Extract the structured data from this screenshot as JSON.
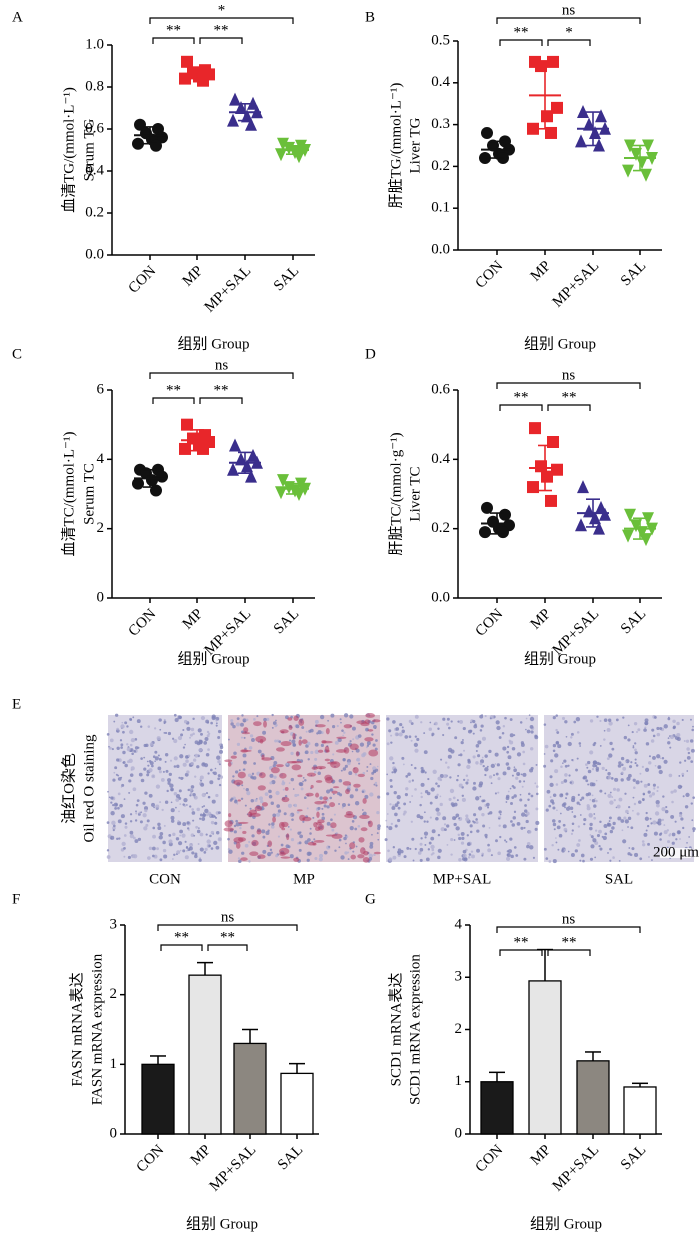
{
  "chart_data": [
    {
      "type": "dotplot",
      "panel": "A",
      "ylabel": [
        "血清TG/(mmol·L⁻¹)",
        "Serum TG"
      ],
      "xlabel": "组别 Group",
      "categories": [
        "CON",
        "MP",
        "MP+SAL",
        "SAL"
      ],
      "colors": [
        "#111111",
        "#e8262a",
        "#3a2e8c",
        "#6abf3a"
      ],
      "markers": [
        "circle",
        "square",
        "triangle-up",
        "triangle-down"
      ],
      "points": [
        [
          0.62,
          0.6,
          0.58,
          0.56,
          0.55,
          0.53,
          0.52
        ],
        [
          0.92,
          0.88,
          0.87,
          0.86,
          0.85,
          0.84,
          0.83
        ],
        [
          0.74,
          0.72,
          0.7,
          0.68,
          0.66,
          0.64,
          0.62
        ],
        [
          0.53,
          0.52,
          0.51,
          0.5,
          0.49,
          0.48,
          0.47
        ]
      ],
      "means": [
        0.57,
        0.86,
        0.68,
        0.5
      ],
      "sd": [
        0.04,
        0.02,
        0.04,
        0.02
      ],
      "ylim": [
        0,
        1.0
      ],
      "yticks": [
        {
          "value": 0,
          "label": "0.0"
        },
        0.2,
        0.4,
        0.6,
        0.8,
        {
          "value": 1.0,
          "label": "1.0"
        }
      ],
      "comparisons": [
        {
          "groups": [
            "CON",
            "MP"
          ],
          "label": "**"
        },
        {
          "groups": [
            "MP",
            "MP+SAL"
          ],
          "label": "**"
        },
        {
          "groups": [
            "CON",
            "SAL"
          ],
          "label": "*"
        }
      ]
    },
    {
      "type": "dotplot",
      "panel": "B",
      "ylabel": [
        "肝脏TG/(mmol·L⁻¹)",
        "Liver TG"
      ],
      "xlabel": "组别 Group",
      "categories": [
        "CON",
        "MP",
        "MP+SAL",
        "SAL"
      ],
      "colors": [
        "#111111",
        "#e8262a",
        "#3a2e8c",
        "#6abf3a"
      ],
      "markers": [
        "circle",
        "square",
        "triangle-up",
        "triangle-down"
      ],
      "points": [
        [
          0.28,
          0.26,
          0.25,
          0.24,
          0.23,
          0.22,
          0.22
        ],
        [
          0.45,
          0.45,
          0.44,
          0.34,
          0.32,
          0.29,
          0.28
        ],
        [
          0.33,
          0.32,
          0.3,
          0.29,
          0.28,
          0.26,
          0.25
        ],
        [
          0.25,
          0.25,
          0.23,
          0.22,
          0.21,
          0.19,
          0.18
        ]
      ],
      "means": [
        0.24,
        0.37,
        0.29,
        0.22
      ],
      "sd": [
        0.02,
        0.08,
        0.04,
        0.03
      ],
      "ylim": [
        0,
        0.5
      ],
      "yticks": [
        {
          "value": 0,
          "label": "0.0"
        },
        0.1,
        0.2,
        0.3,
        0.4,
        0.5
      ],
      "comparisons": [
        {
          "groups": [
            "CON",
            "MP"
          ],
          "label": "**"
        },
        {
          "groups": [
            "MP",
            "MP+SAL"
          ],
          "label": "*"
        },
        {
          "groups": [
            "CON",
            "SAL"
          ],
          "label": "ns"
        }
      ]
    },
    {
      "type": "dotplot",
      "panel": "C",
      "ylabel": [
        "血清TC/(mmol·L⁻¹)",
        "Serum TC"
      ],
      "xlabel": "组别 Group",
      "categories": [
        "CON",
        "MP",
        "MP+SAL",
        "SAL"
      ],
      "colors": [
        "#111111",
        "#e8262a",
        "#3a2e8c",
        "#6abf3a"
      ],
      "markers": [
        "circle",
        "square",
        "triangle-up",
        "triangle-down"
      ],
      "points": [
        [
          3.7,
          3.7,
          3.6,
          3.5,
          3.4,
          3.3,
          3.1
        ],
        [
          5.0,
          4.7,
          4.6,
          4.5,
          4.4,
          4.3,
          4.3
        ],
        [
          4.4,
          4.1,
          4.0,
          3.9,
          3.8,
          3.7,
          3.5
        ],
        [
          3.4,
          3.3,
          3.2,
          3.15,
          3.1,
          3.05,
          3.0
        ]
      ],
      "means": [
        3.45,
        4.55,
        3.9,
        3.15
      ],
      "sd": [
        0.25,
        0.3,
        0.3,
        0.15
      ],
      "ylim": [
        0,
        6
      ],
      "yticks": [
        0,
        2,
        4,
        6
      ],
      "comparisons": [
        {
          "groups": [
            "CON",
            "MP"
          ],
          "label": "**"
        },
        {
          "groups": [
            "MP",
            "MP+SAL"
          ],
          "label": "**"
        },
        {
          "groups": [
            "CON",
            "SAL"
          ],
          "label": "ns"
        }
      ]
    },
    {
      "type": "dotplot",
      "panel": "D",
      "ylabel": [
        "肝脏TC/(mmol·g⁻¹)",
        "Liver TC"
      ],
      "xlabel": "组别 Group",
      "categories": [
        "CON",
        "MP",
        "MP+SAL",
        "SAL"
      ],
      "colors": [
        "#111111",
        "#e8262a",
        "#3a2e8c",
        "#6abf3a"
      ],
      "markers": [
        "circle",
        "square",
        "triangle-up",
        "triangle-down"
      ],
      "points": [
        [
          0.26,
          0.24,
          0.22,
          0.21,
          0.2,
          0.19,
          0.19
        ],
        [
          0.49,
          0.45,
          0.38,
          0.37,
          0.35,
          0.32,
          0.28
        ],
        [
          0.32,
          0.26,
          0.25,
          0.24,
          0.23,
          0.21,
          0.2
        ],
        [
          0.24,
          0.23,
          0.21,
          0.2,
          0.19,
          0.18,
          0.17
        ]
      ],
      "means": [
        0.215,
        0.375,
        0.245,
        0.2
      ],
      "sd": [
        0.03,
        0.065,
        0.04,
        0.03
      ],
      "ylim": [
        0,
        0.6
      ],
      "yticks": [
        {
          "value": 0,
          "label": "0.0"
        },
        0.2,
        0.4,
        0.6
      ],
      "comparisons": [
        {
          "groups": [
            "CON",
            "MP"
          ],
          "label": "**"
        },
        {
          "groups": [
            "MP",
            "MP+SAL"
          ],
          "label": "**"
        },
        {
          "groups": [
            "CON",
            "SAL"
          ],
          "label": "ns"
        }
      ]
    },
    {
      "type": "image",
      "panel": "E",
      "ylabel": [
        "油红O染色",
        "Oil red O staining"
      ],
      "categories": [
        "CON",
        "MP",
        "MP+SAL",
        "SAL"
      ],
      "scale_bar": "200 μm"
    },
    {
      "type": "bar",
      "panel": "F",
      "ylabel": [
        "FASN mRNA表达",
        "FASN mRNA expression"
      ],
      "xlabel": "组别 Group",
      "categories": [
        "CON",
        "MP",
        "MP+SAL",
        "SAL"
      ],
      "colors": [
        "#1a1a1a",
        "#e6e6e6",
        "#8c8780",
        "#ffffff"
      ],
      "values": [
        1.0,
        2.28,
        1.3,
        0.87
      ],
      "errors": [
        0.12,
        0.18,
        0.2,
        0.14
      ],
      "ylim": [
        0,
        3
      ],
      "yticks": [
        0,
        1,
        2,
        3
      ],
      "comparisons": [
        {
          "groups": [
            "CON",
            "MP"
          ],
          "label": "**"
        },
        {
          "groups": [
            "MP",
            "MP+SAL"
          ],
          "label": "**"
        },
        {
          "groups": [
            "CON",
            "SAL"
          ],
          "label": "ns"
        }
      ]
    },
    {
      "type": "bar",
      "panel": "G",
      "ylabel": [
        "SCD1 mRNA表达",
        "SCD1 mRNA expression"
      ],
      "xlabel": "组别 Group",
      "categories": [
        "CON",
        "MP",
        "MP+SAL",
        "SAL"
      ],
      "colors": [
        "#1a1a1a",
        "#e6e6e6",
        "#8c8780",
        "#ffffff"
      ],
      "values": [
        1.0,
        2.93,
        1.4,
        0.9
      ],
      "errors": [
        0.18,
        0.6,
        0.17,
        0.07
      ],
      "ylim": [
        0,
        4
      ],
      "yticks": [
        0,
        1,
        2,
        3,
        4
      ],
      "comparisons": [
        {
          "groups": [
            "CON",
            "MP"
          ],
          "label": "**"
        },
        {
          "groups": [
            "MP",
            "MP+SAL"
          ],
          "label": "**"
        },
        {
          "groups": [
            "CON",
            "SAL"
          ],
          "label": "ns"
        }
      ]
    }
  ]
}
